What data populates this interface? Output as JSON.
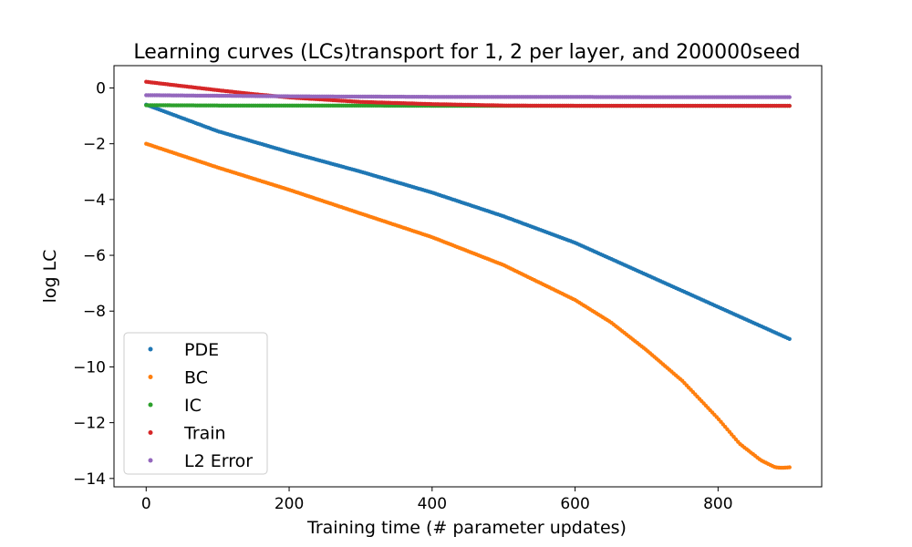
{
  "chart_data": {
    "type": "scatter",
    "title": "Learning curves (LCs)transport for 1, 2 per layer, and 200000seed",
    "xlabel": "Training time (# parameter updates)",
    "ylabel": "log LC",
    "xlim": [
      -45,
      945
    ],
    "ylim": [
      -14.3,
      0.8
    ],
    "xticks": [
      0,
      200,
      400,
      600,
      800
    ],
    "yticks": [
      0,
      -2,
      -4,
      -6,
      -8,
      -10,
      -12,
      -14
    ],
    "legend_position": "lower-left",
    "grid": false,
    "series": [
      {
        "name": "PDE",
        "color": "#1f77b4",
        "x": [
          0,
          100,
          200,
          300,
          400,
          500,
          600,
          700,
          800,
          900
        ],
        "y": [
          -0.6,
          -1.55,
          -2.3,
          -3.0,
          -3.75,
          -4.6,
          -5.55,
          -6.7,
          -7.85,
          -9.0
        ]
      },
      {
        "name": "BC",
        "color": "#ff7f0e",
        "x": [
          0,
          100,
          200,
          300,
          400,
          500,
          600,
          650,
          700,
          750,
          800,
          830,
          860,
          880,
          890,
          900
        ],
        "y": [
          -2.0,
          -2.85,
          -3.65,
          -4.5,
          -5.35,
          -6.35,
          -7.6,
          -8.4,
          -9.4,
          -10.5,
          -11.85,
          -12.75,
          -13.35,
          -13.6,
          -13.62,
          -13.6
        ]
      },
      {
        "name": "IC",
        "color": "#2ca02c",
        "x": [
          0,
          100,
          200,
          300,
          400,
          500,
          600,
          700,
          800,
          900
        ],
        "y": [
          -0.62,
          -0.63,
          -0.63,
          -0.63,
          -0.64,
          -0.64,
          -0.64,
          -0.64,
          -0.64,
          -0.64
        ]
      },
      {
        "name": "Train",
        "color": "#d62728",
        "x": [
          0,
          50,
          100,
          150,
          200,
          250,
          300,
          400,
          500,
          600,
          700,
          800,
          900
        ],
        "y": [
          0.22,
          0.07,
          -0.08,
          -0.22,
          -0.34,
          -0.42,
          -0.5,
          -0.58,
          -0.63,
          -0.64,
          -0.64,
          -0.64,
          -0.64
        ]
      },
      {
        "name": "L2 Error",
        "color": "#9467bd",
        "x": [
          0,
          100,
          200,
          300,
          400,
          500,
          600,
          700,
          800,
          900
        ],
        "y": [
          -0.26,
          -0.28,
          -0.3,
          -0.31,
          -0.32,
          -0.32,
          -0.32,
          -0.33,
          -0.33,
          -0.33
        ]
      }
    ]
  }
}
